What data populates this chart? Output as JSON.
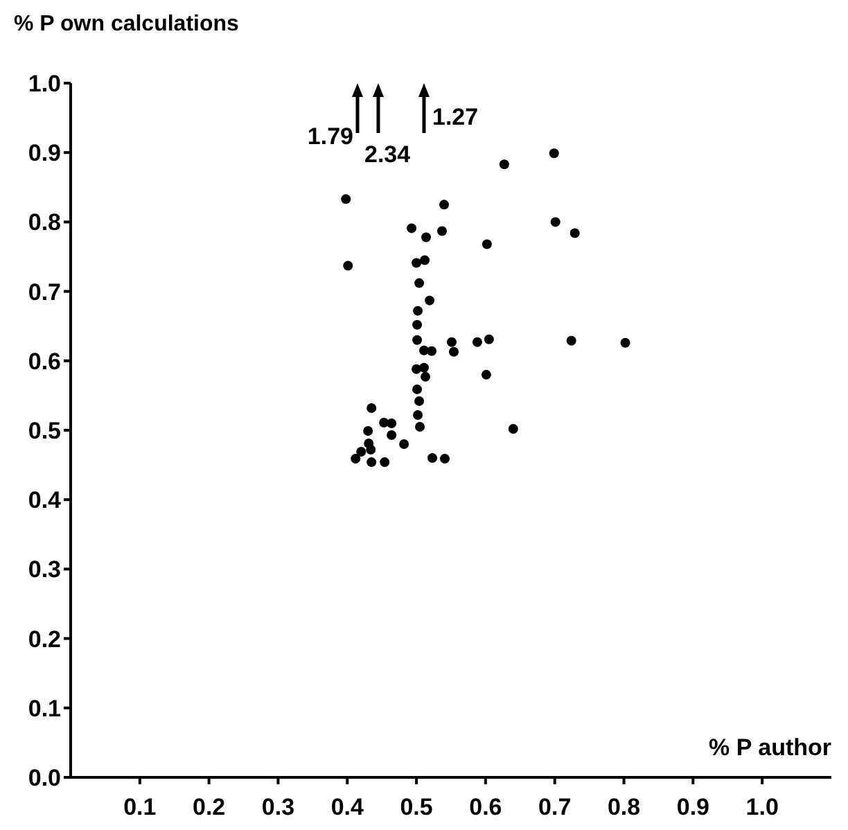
{
  "chart_data": {
    "type": "scatter",
    "xlabel": "% P author",
    "ylabel": "% P own calculations",
    "xlim": [
      0,
      1.1
    ],
    "xticks": [
      0.1,
      0.2,
      0.3,
      0.4,
      0.5,
      0.6,
      0.7,
      0.8,
      0.9,
      {
        "value": 1,
        "label": "1.0"
      }
    ],
    "ylim": [
      0,
      1.0
    ],
    "yticks": [
      {
        "value": 0,
        "label": "0.0"
      },
      0.1,
      0.2,
      0.3,
      0.4,
      0.5,
      0.6,
      0.7,
      0.8,
      0.9,
      {
        "value": 1,
        "label": "1.0"
      }
    ],
    "grid": false,
    "legend": false,
    "marker": "circle",
    "annotations": [
      "1.79",
      "2.34",
      "1.27"
    ],
    "series": [
      {
        "color": "#000000",
        "x": [
          0.398,
          0.401,
          0.493,
          0.514,
          0.54,
          0.537,
          0.602,
          0.627,
          0.699,
          0.701,
          0.729,
          0.5,
          0.512,
          0.504,
          0.519,
          0.502,
          0.501,
          0.501,
          0.511,
          0.522,
          0.551,
          0.554,
          0.588,
          0.605,
          0.724,
          0.802,
          0.5,
          0.511,
          0.513,
          0.601,
          0.501,
          0.504,
          0.502,
          0.505,
          0.64,
          0.435,
          0.43,
          0.453,
          0.464,
          0.464,
          0.482,
          0.431,
          0.434,
          0.42,
          0.412,
          0.435,
          0.454,
          0.523,
          0.541
        ],
        "values": [
          0.833,
          0.737,
          0.791,
          0.778,
          0.825,
          0.787,
          0.768,
          0.883,
          0.899,
          0.8,
          0.784,
          0.741,
          0.745,
          0.712,
          0.687,
          0.672,
          0.652,
          0.63,
          0.615,
          0.614,
          0.627,
          0.613,
          0.627,
          0.631,
          0.629,
          0.626,
          0.588,
          0.59,
          0.577,
          0.58,
          0.559,
          0.542,
          0.522,
          0.505,
          0.502,
          0.532,
          0.499,
          0.511,
          0.51,
          0.493,
          0.48,
          0.481,
          0.472,
          0.469,
          0.459,
          0.454,
          0.454,
          0.46,
          0.459
        ]
      }
    ]
  }
}
